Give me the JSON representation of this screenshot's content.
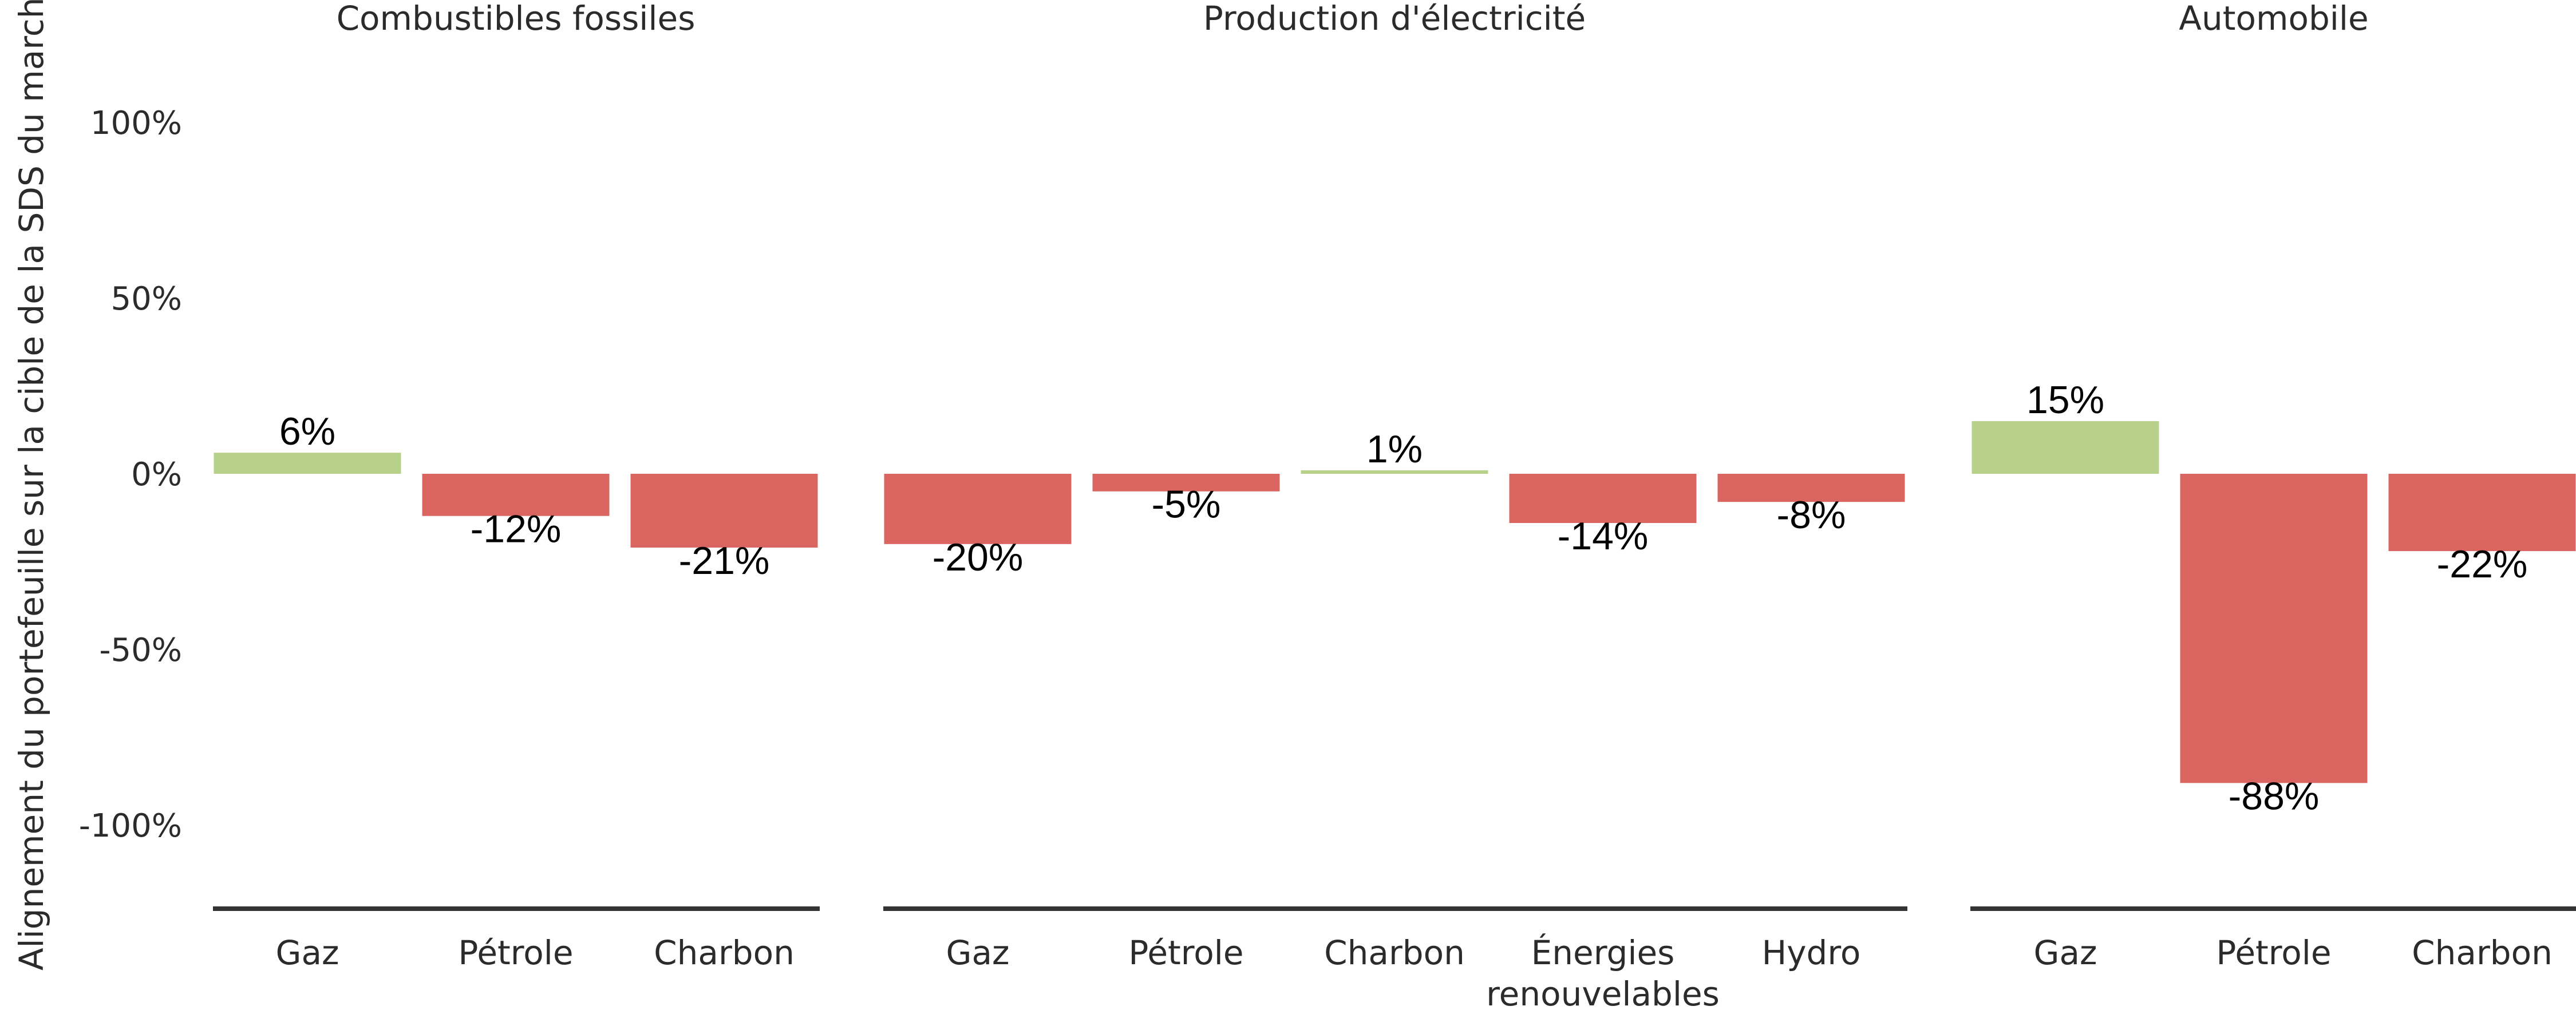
{
  "chart_data": {
    "type": "bar",
    "ylabel": "Alignement du portefeuille sur la cible de la SDS du marché",
    "ylim": [
      -1.25,
      1.1
    ],
    "yticks": [
      1.0,
      0.5,
      0.0,
      -0.5,
      -1.0
    ],
    "ytick_labels": [
      "100%",
      "50%",
      "0%",
      "-50%",
      "-100%"
    ],
    "grid": false,
    "legend": "none",
    "colors": {
      "positive": "#b7d18a",
      "negative": "#d96460",
      "axis": "#333333",
      "text": "#2b2b2b"
    },
    "panels": [
      {
        "title": "Combustibles fossiles",
        "categories": [
          "Gaz",
          "Pétrole",
          "Charbon"
        ],
        "values": [
          0.06,
          -0.12,
          -0.21
        ],
        "labels": [
          "6%",
          "-12%",
          "-21%"
        ]
      },
      {
        "title": "Production d'électricité",
        "categories": [
          "Gaz",
          "Pétrole",
          "Charbon",
          "Énergies renouvelables",
          "Hydro"
        ],
        "values": [
          -0.2,
          -0.05,
          0.01,
          -0.14,
          -0.08
        ],
        "labels": [
          "-20%",
          "-5%",
          "1%",
          "-14%",
          "-8%"
        ]
      },
      {
        "title": "Automobile",
        "categories": [
          "Gaz",
          "Pétrole",
          "Charbon"
        ],
        "values": [
          0.15,
          -0.88,
          -0.22
        ],
        "labels": [
          "15%",
          "-88%",
          "-22%"
        ]
      }
    ]
  }
}
